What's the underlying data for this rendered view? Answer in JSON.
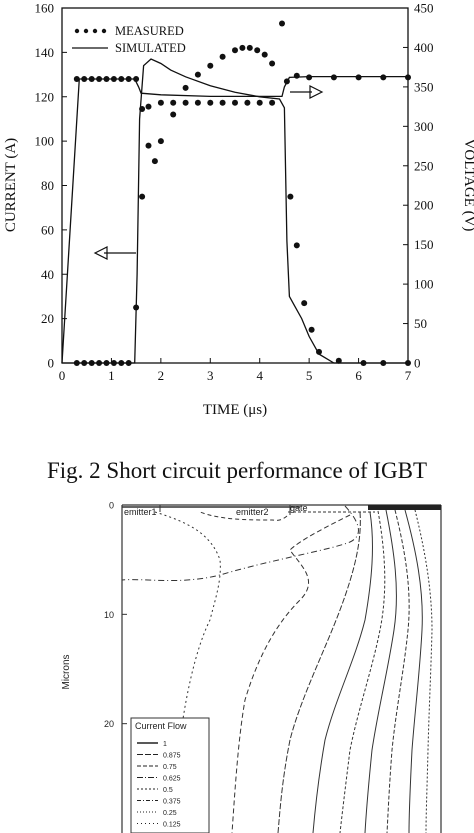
{
  "figure": {
    "caption": "Fig. 2 Short circuit performance of IGBT"
  },
  "chart_data": [
    {
      "type": "line",
      "title": "",
      "xlabel": "TIME (μs)",
      "ylabel_left": "CURRENT (A)",
      "ylabel_right": "VOLTAGE (V)",
      "xlim": [
        0,
        7
      ],
      "ylim_left": [
        0,
        160
      ],
      "ylim_right": [
        0,
        450
      ],
      "x_ticks": [
        "0",
        "1",
        "2",
        "3",
        "4",
        "5",
        "6",
        "7"
      ],
      "y_ticks_left": [
        "0",
        "20",
        "40",
        "60",
        "80",
        "100",
        "120",
        "140",
        "160"
      ],
      "y_ticks_right": [
        "0",
        "50",
        "100",
        "150",
        "200",
        "250",
        "300",
        "350",
        "400",
        "450"
      ],
      "legend": {
        "position": "top-left",
        "entries": [
          {
            "label": "MEASURED",
            "style": "dots"
          },
          {
            "label": "SIMULATED",
            "style": "line"
          }
        ]
      },
      "series": [
        {
          "name": "MEASURED",
          "axis": "left",
          "style": "dots",
          "x": [
            0.3,
            0.45,
            0.6,
            0.75,
            0.9,
            1.05,
            1.2,
            1.35,
            1.5,
            1.62,
            1.75,
            1.88,
            2.0,
            2.25,
            2.5,
            2.75,
            3.0,
            3.25,
            3.5,
            3.65,
            3.8,
            3.95,
            4.1,
            4.25,
            4.45,
            4.62,
            4.75,
            4.9,
            5.05,
            5.2,
            5.6,
            6.1,
            6.5,
            7.0
          ],
          "y": [
            0,
            0,
            0,
            0,
            0,
            0,
            0,
            0,
            25,
            75,
            98,
            91,
            100,
            112,
            124,
            130,
            134,
            138,
            141,
            142,
            142,
            141,
            139,
            135,
            153,
            75,
            53,
            27,
            15,
            5,
            1,
            0,
            0,
            0
          ]
        },
        {
          "name": "MEASURED",
          "axis": "right",
          "style": "dots",
          "x": [
            0.3,
            0.45,
            0.6,
            0.75,
            0.9,
            1.05,
            1.2,
            1.35,
            1.5,
            1.62,
            1.75,
            2.0,
            2.25,
            2.5,
            2.75,
            3.0,
            3.25,
            3.5,
            3.75,
            4.0,
            4.25,
            4.55,
            4.75,
            5.0,
            5.5,
            6.0,
            6.5,
            7.0
          ],
          "y": [
            360,
            360,
            360,
            360,
            360,
            360,
            360,
            360,
            360,
            322,
            325,
            330,
            330,
            330,
            330,
            330,
            330,
            330,
            330,
            330,
            330,
            357,
            364,
            362,
            362,
            362,
            362,
            362
          ]
        },
        {
          "name": "SIMULATED",
          "axis": "left",
          "style": "line",
          "x": [
            0,
            1.47,
            1.52,
            1.57,
            1.65,
            1.8,
            2.0,
            2.2,
            2.5,
            3.0,
            3.5,
            4.0,
            4.4,
            4.5,
            4.55,
            4.6,
            4.7,
            4.85,
            5.0,
            5.2,
            5.5,
            6.0,
            7.0
          ],
          "y": [
            0,
            0,
            40,
            110,
            134,
            137,
            135,
            132,
            129,
            125,
            122,
            120,
            119,
            115,
            55,
            30,
            26,
            20,
            12,
            4,
            0,
            0,
            0
          ]
        },
        {
          "name": "SIMULATED",
          "axis": "right",
          "style": "line",
          "x": [
            0,
            0.35,
            1.47,
            1.55,
            1.6,
            2.0,
            3.0,
            4.0,
            4.45,
            4.5,
            4.6,
            5.0,
            6.0,
            7.0
          ],
          "y": [
            0,
            360,
            360,
            350,
            342,
            340,
            338,
            338,
            338,
            350,
            362,
            363,
            363,
            363
          ]
        }
      ],
      "annotations": [
        {
          "text": "arrow pointing left to CURRENT axis"
        },
        {
          "text": "arrow pointing right to VOLTAGE axis"
        }
      ]
    },
    {
      "type": "contour",
      "title": "",
      "ylabel": "Microns",
      "y_ticks": [
        "0",
        "10",
        "20"
      ],
      "ylim": [
        0,
        30
      ],
      "region_labels": [
        "emitter1",
        "emitter2",
        "gate"
      ],
      "legend": {
        "title": "Current Flow",
        "position": "bottom-left",
        "entries": [
          "1",
          "0.875",
          "0.75",
          "0.625",
          "0.5",
          "0.375",
          "0.25",
          "0.125"
        ]
      }
    }
  ]
}
